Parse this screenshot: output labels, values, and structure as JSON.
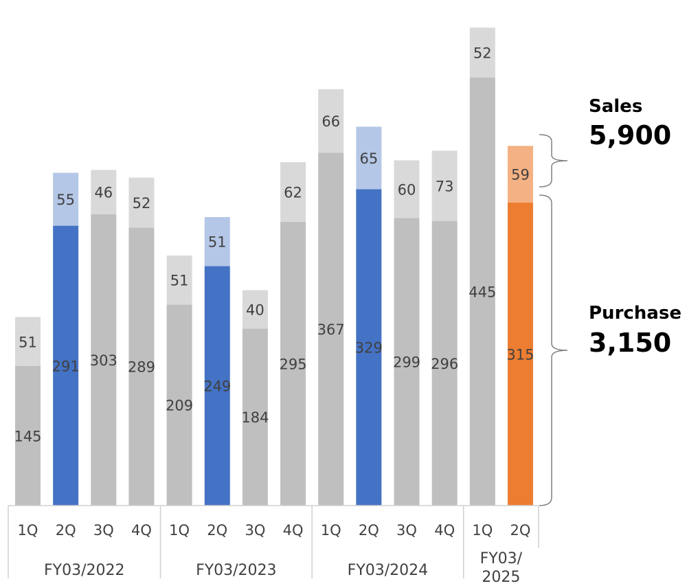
{
  "chart_data": {
    "type": "bar",
    "stacked": true,
    "categories": [
      "1Q",
      "2Q",
      "3Q",
      "4Q",
      "1Q",
      "2Q",
      "3Q",
      "4Q",
      "1Q",
      "2Q",
      "3Q",
      "4Q",
      "1Q",
      "2Q"
    ],
    "groups": [
      {
        "label": "FY03/2022",
        "quarters": 4
      },
      {
        "label": "FY03/2023",
        "quarters": 4
      },
      {
        "label": "FY03/2024",
        "quarters": 4
      },
      {
        "label": "FY03/\n2025",
        "quarters": 2
      }
    ],
    "series": [
      {
        "values": [
          145,
          291,
          303,
          289,
          209,
          249,
          184,
          295,
          367,
          329,
          299,
          296,
          445,
          315
        ]
      },
      {
        "values": [
          51,
          55,
          46,
          52,
          51,
          51,
          40,
          62,
          66,
          65,
          60,
          73,
          52,
          59
        ]
      }
    ],
    "ylim": [
      0,
      510
    ],
    "grid": false,
    "colors": {
      "base_gray": "#bfbfbf",
      "top_gray": "#d9d9d9",
      "base_blue": "#4472c4",
      "top_blue": "#b4c7e7",
      "base_orange": "#ed7d31",
      "top_orange": "#f4b183",
      "axis": "#d0d0d0",
      "text": "#404040"
    },
    "highlight": {
      "blue_indices": [
        1,
        5,
        9
      ],
      "orange_indices": [
        13
      ]
    },
    "annotations": {
      "sales": {
        "title": "Sales",
        "value": "5,900"
      },
      "purchase": {
        "title": "Purchase",
        "value": "3,150"
      }
    }
  }
}
